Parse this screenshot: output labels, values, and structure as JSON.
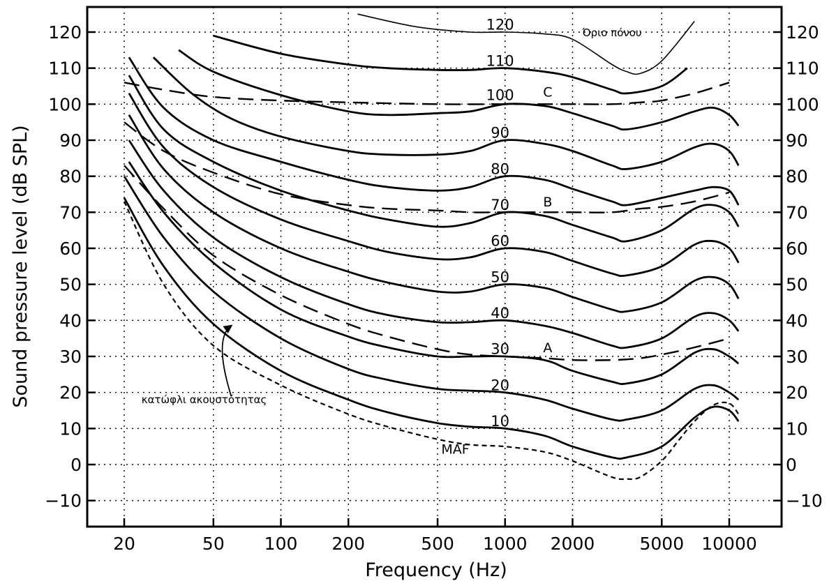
{
  "chart_data": {
    "type": "line",
    "xlabel": "Frequency (Hz)",
    "ylabel": "Sound pressure level (dB SPL)",
    "x_scale": "log",
    "xlim": [
      18,
      13000
    ],
    "ylim": [
      -15,
      125
    ],
    "x_ticks": [
      20,
      50,
      100,
      200,
      500,
      1000,
      2000,
      5000,
      10000
    ],
    "x_tick_labels": [
      "20",
      "50",
      "100",
      "200",
      "500",
      "1000",
      "2000",
      "5000",
      "10000"
    ],
    "y_ticks": [
      -10,
      0,
      10,
      20,
      30,
      40,
      50,
      60,
      70,
      80,
      90,
      100,
      110,
      120
    ],
    "y_tick_labels": [
      "−10",
      "0",
      "10",
      "20",
      "30",
      "40",
      "50",
      "60",
      "70",
      "80",
      "90",
      "100",
      "110",
      "120"
    ],
    "grid": true,
    "equal_loudness_contours": [
      {
        "label": "10",
        "points": [
          [
            20,
            74
          ],
          [
            30,
            55
          ],
          [
            50,
            39
          ],
          [
            100,
            26
          ],
          [
            200,
            18
          ],
          [
            300,
            14.5
          ],
          [
            500,
            11.5
          ],
          [
            700,
            10.5
          ],
          [
            1000,
            10
          ],
          [
            1500,
            8
          ],
          [
            2000,
            5
          ],
          [
            3000,
            2
          ],
          [
            3500,
            2
          ],
          [
            5000,
            5
          ],
          [
            7000,
            13
          ],
          [
            8500,
            16
          ],
          [
            10000,
            15
          ],
          [
            11000,
            12
          ]
        ]
      },
      {
        "label": "20",
        "points": [
          [
            20,
            80
          ],
          [
            30,
            63
          ],
          [
            50,
            48
          ],
          [
            100,
            35
          ],
          [
            200,
            26.5
          ],
          [
            300,
            23.5
          ],
          [
            500,
            21
          ],
          [
            700,
            20.5
          ],
          [
            1000,
            20
          ],
          [
            1500,
            18
          ],
          [
            2000,
            15.5
          ],
          [
            3000,
            12.5
          ],
          [
            3500,
            12.5
          ],
          [
            5000,
            15
          ],
          [
            7000,
            21
          ],
          [
            8500,
            22
          ],
          [
            10000,
            20
          ],
          [
            11000,
            18
          ]
        ]
      },
      {
        "label": "30",
        "points": [
          [
            21,
            84
          ],
          [
            30,
            70
          ],
          [
            50,
            56
          ],
          [
            100,
            43
          ],
          [
            200,
            35.5
          ],
          [
            300,
            32.5
          ],
          [
            500,
            30
          ],
          [
            700,
            30
          ],
          [
            1000,
            30
          ],
          [
            1500,
            29
          ],
          [
            2000,
            26
          ],
          [
            3000,
            23
          ],
          [
            3500,
            22.5
          ],
          [
            5000,
            25
          ],
          [
            7000,
            31
          ],
          [
            8500,
            32
          ],
          [
            10000,
            30
          ],
          [
            11000,
            28
          ]
        ]
      },
      {
        "label": "40",
        "points": [
          [
            21,
            90
          ],
          [
            30,
            76
          ],
          [
            50,
            63
          ],
          [
            100,
            52
          ],
          [
            200,
            44.5
          ],
          [
            300,
            41.5
          ],
          [
            500,
            39.5
          ],
          [
            700,
            39.5
          ],
          [
            1000,
            40
          ],
          [
            1500,
            38.5
          ],
          [
            2000,
            36.5
          ],
          [
            3000,
            33
          ],
          [
            3500,
            32.5
          ],
          [
            5000,
            35
          ],
          [
            7000,
            41
          ],
          [
            8500,
            42
          ],
          [
            10000,
            40
          ],
          [
            11000,
            37
          ]
        ]
      },
      {
        "label": "50",
        "points": [
          [
            21,
            97
          ],
          [
            30,
            82
          ],
          [
            50,
            70
          ],
          [
            100,
            60
          ],
          [
            200,
            53.5
          ],
          [
            300,
            50.5
          ],
          [
            500,
            48
          ],
          [
            700,
            48
          ],
          [
            1000,
            50
          ],
          [
            1500,
            49
          ],
          [
            2000,
            46.5
          ],
          [
            3000,
            43
          ],
          [
            3500,
            42.5
          ],
          [
            5000,
            45
          ],
          [
            7000,
            51
          ],
          [
            8500,
            52
          ],
          [
            10000,
            50
          ],
          [
            11000,
            46
          ]
        ]
      },
      {
        "label": "60",
        "points": [
          [
            21,
            103
          ],
          [
            30,
            88
          ],
          [
            50,
            77
          ],
          [
            100,
            68
          ],
          [
            200,
            62
          ],
          [
            300,
            59
          ],
          [
            500,
            57
          ],
          [
            700,
            57.5
          ],
          [
            1000,
            60
          ],
          [
            1500,
            59
          ],
          [
            2000,
            56.5
          ],
          [
            3000,
            53
          ],
          [
            3500,
            52.5
          ],
          [
            5000,
            55
          ],
          [
            7000,
            61
          ],
          [
            8500,
            62
          ],
          [
            10000,
            60
          ],
          [
            11000,
            56
          ]
        ]
      },
      {
        "label": "70",
        "points": [
          [
            21,
            108
          ],
          [
            30,
            93
          ],
          [
            50,
            84
          ],
          [
            100,
            76
          ],
          [
            200,
            70.5
          ],
          [
            300,
            68
          ],
          [
            500,
            66
          ],
          [
            700,
            67
          ],
          [
            1000,
            70
          ],
          [
            1500,
            69
          ],
          [
            2000,
            66.5
          ],
          [
            3000,
            63
          ],
          [
            3500,
            62
          ],
          [
            5000,
            65
          ],
          [
            7000,
            71
          ],
          [
            8500,
            72
          ],
          [
            10000,
            70
          ],
          [
            11000,
            66
          ]
        ]
      },
      {
        "label": "80",
        "points": [
          [
            21,
            113
          ],
          [
            30,
            99
          ],
          [
            50,
            90
          ],
          [
            100,
            84
          ],
          [
            200,
            79
          ],
          [
            300,
            77
          ],
          [
            500,
            76
          ],
          [
            700,
            77
          ],
          [
            1000,
            80
          ],
          [
            1500,
            79
          ],
          [
            2000,
            76.5
          ],
          [
            3000,
            73
          ],
          [
            3500,
            72
          ],
          [
            5000,
            74
          ],
          [
            7000,
            76
          ],
          [
            8500,
            77
          ],
          [
            10000,
            76
          ],
          [
            11000,
            72
          ]
        ]
      },
      {
        "label": "90",
        "points": [
          [
            27,
            113
          ],
          [
            40,
            103
          ],
          [
            60,
            96
          ],
          [
            100,
            91
          ],
          [
            200,
            87
          ],
          [
            300,
            86
          ],
          [
            500,
            86
          ],
          [
            700,
            87
          ],
          [
            1000,
            90
          ],
          [
            1500,
            89
          ],
          [
            2000,
            87
          ],
          [
            3000,
            83
          ],
          [
            3500,
            82
          ],
          [
            5000,
            84
          ],
          [
            7000,
            88
          ],
          [
            8500,
            89
          ],
          [
            10000,
            87
          ],
          [
            11000,
            83
          ]
        ]
      },
      {
        "label": "100",
        "points": [
          [
            35,
            115
          ],
          [
            50,
            109
          ],
          [
            100,
            102.5
          ],
          [
            200,
            98
          ],
          [
            300,
            97
          ],
          [
            500,
            97.5
          ],
          [
            700,
            98
          ],
          [
            1000,
            100
          ],
          [
            1500,
            99.5
          ],
          [
            2000,
            97.5
          ],
          [
            3000,
            94
          ],
          [
            3500,
            93
          ],
          [
            5000,
            95
          ],
          [
            7000,
            98
          ],
          [
            8500,
            99
          ],
          [
            10000,
            97
          ],
          [
            11000,
            94
          ]
        ]
      },
      {
        "label": "110",
        "points": [
          [
            50,
            119
          ],
          [
            100,
            114
          ],
          [
            200,
            111
          ],
          [
            300,
            110
          ],
          [
            500,
            109.5
          ],
          [
            700,
            109.5
          ],
          [
            1000,
            110
          ],
          [
            1500,
            109
          ],
          [
            2000,
            107.5
          ],
          [
            3000,
            104
          ],
          [
            3500,
            103
          ],
          [
            5000,
            105
          ],
          [
            6500,
            110
          ]
        ]
      },
      {
        "label": "120",
        "points": [
          [
            220,
            125
          ],
          [
            400,
            121.5
          ],
          [
            700,
            120
          ],
          [
            1000,
            120
          ],
          [
            1500,
            119.5
          ],
          [
            2000,
            118
          ],
          [
            3000,
            111
          ],
          [
            3500,
            109
          ],
          [
            4000,
            108.5
          ],
          [
            5000,
            112
          ],
          [
            7000,
            123
          ]
        ]
      }
    ],
    "weighting_curves": [
      {
        "label": "A",
        "points": [
          [
            20,
            83
          ],
          [
            30,
            71
          ],
          [
            50,
            58
          ],
          [
            100,
            47
          ],
          [
            200,
            39
          ],
          [
            300,
            35.5
          ],
          [
            500,
            32
          ],
          [
            700,
            30.5
          ],
          [
            1000,
            30
          ],
          [
            1500,
            29.5
          ],
          [
            2000,
            29
          ],
          [
            3000,
            29
          ],
          [
            4000,
            29.5
          ],
          [
            5000,
            30.5
          ],
          [
            7000,
            32.5
          ],
          [
            10000,
            35
          ]
        ]
      },
      {
        "label": "B",
        "points": [
          [
            20,
            95
          ],
          [
            30,
            87
          ],
          [
            50,
            81
          ],
          [
            100,
            75
          ],
          [
            200,
            72
          ],
          [
            300,
            71
          ],
          [
            500,
            70.5
          ],
          [
            700,
            70
          ],
          [
            1000,
            70
          ],
          [
            1500,
            70
          ],
          [
            2000,
            70
          ],
          [
            3000,
            70
          ],
          [
            4000,
            71
          ],
          [
            5000,
            71.5
          ],
          [
            7000,
            73
          ],
          [
            10000,
            75.5
          ]
        ]
      },
      {
        "label": "C",
        "points": [
          [
            20,
            106
          ],
          [
            30,
            104
          ],
          [
            50,
            102
          ],
          [
            100,
            101
          ],
          [
            200,
            100.5
          ],
          [
            500,
            100
          ],
          [
            1000,
            100
          ],
          [
            2000,
            100
          ],
          [
            3000,
            100
          ],
          [
            4000,
            100.5
          ],
          [
            5000,
            101
          ],
          [
            7000,
            103
          ],
          [
            10000,
            106
          ]
        ]
      }
    ],
    "maf_curve": {
      "label": "MAF",
      "points": [
        [
          20,
          73
        ],
        [
          30,
          50
        ],
        [
          50,
          33
        ],
        [
          100,
          22
        ],
        [
          200,
          14
        ],
        [
          300,
          10.5
        ],
        [
          500,
          7
        ],
        [
          700,
          5.5
        ],
        [
          1000,
          5
        ],
        [
          1500,
          3.5
        ],
        [
          2000,
          1
        ],
        [
          3000,
          -3.5
        ],
        [
          3500,
          -4
        ],
        [
          4000,
          -3.5
        ],
        [
          5000,
          1
        ],
        [
          6000,
          7
        ],
        [
          7000,
          12
        ],
        [
          8500,
          16.5
        ],
        [
          10000,
          17
        ],
        [
          11000,
          14
        ]
      ]
    },
    "phon_labels": [
      {
        "text": "120",
        "x": 950,
        "y": 122
      },
      {
        "text": "110",
        "x": 950,
        "y": 112
      },
      {
        "text": "100",
        "x": 950,
        "y": 102.5
      },
      {
        "text": "90",
        "x": 950,
        "y": 92
      },
      {
        "text": "80",
        "x": 950,
        "y": 82
      },
      {
        "text": "70",
        "x": 950,
        "y": 72
      },
      {
        "text": "60",
        "x": 950,
        "y": 62
      },
      {
        "text": "50",
        "x": 950,
        "y": 52
      },
      {
        "text": "40",
        "x": 950,
        "y": 42
      },
      {
        "text": "30",
        "x": 950,
        "y": 32
      },
      {
        "text": "20",
        "x": 950,
        "y": 22
      },
      {
        "text": "10",
        "x": 950,
        "y": 12
      }
    ],
    "weighting_labels": [
      {
        "text": "C",
        "x": 1550,
        "y": 103.5
      },
      {
        "text": "B",
        "x": 1550,
        "y": 73
      },
      {
        "text": "A",
        "x": 1550,
        "y": 32.5
      }
    ],
    "annotations": [
      {
        "text": "MAF",
        "x": 600,
        "y": 3
      },
      {
        "text": "Όριο πόνου",
        "x": 3000,
        "y": 120
      },
      {
        "text": "κατώφλι ακουστότητας",
        "x": 21,
        "y": 18
      }
    ],
    "arrow": {
      "from": [
        60,
        19
      ],
      "control": [
        50,
        35
      ],
      "to": [
        60,
        38.5
      ]
    }
  }
}
